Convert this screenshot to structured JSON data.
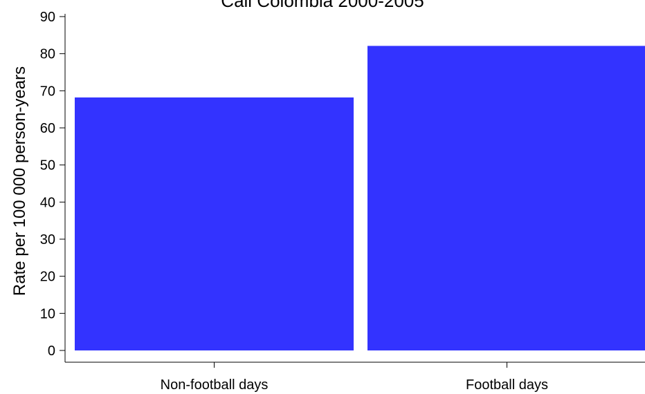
{
  "chart_data": {
    "type": "bar",
    "title": "Cali Colombia 2000-2005",
    "xlabel": "",
    "ylabel": "Rate per 100 000 person-years",
    "categories": [
      "Non-football days",
      "Football days"
    ],
    "values": [
      68.2,
      82.1
    ],
    "ylim": [
      0,
      90
    ],
    "yticks": [
      "0",
      "10",
      "20",
      "30",
      "40",
      "50",
      "60",
      "70",
      "80",
      "90"
    ],
    "grid": false,
    "bar_color": "#3333ff"
  }
}
